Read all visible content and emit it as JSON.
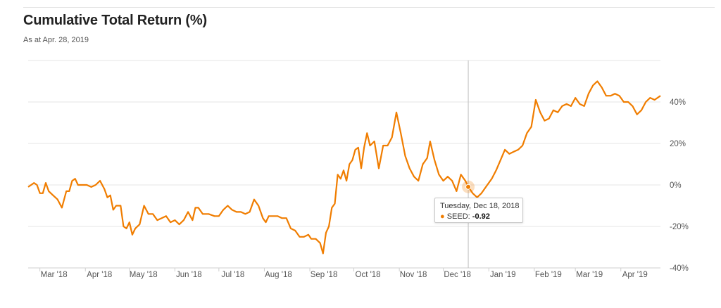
{
  "header": {
    "title": "Cumulative Total Return (%)",
    "subtitle": "As at Apr. 28, 2019"
  },
  "tooltip": {
    "date": "Tuesday, Dec 18, 2018",
    "series": "SEED:",
    "value": "-0.92"
  },
  "colors": {
    "series": "#f07d00",
    "grid": "#e6e6e6",
    "crosshair": "#bdbdbd"
  },
  "chart_data": {
    "type": "line",
    "title": "Cumulative Total Return (%)",
    "subtitle": "As at Apr. 28, 2019",
    "xlabel": "",
    "ylabel": "",
    "x_start": "2018-02-21",
    "x_end": "2019-04-28",
    "ylim": [
      -40,
      60
    ],
    "y_ticks": [
      40,
      20,
      0,
      -20,
      -40
    ],
    "y_tick_labels": [
      "40%",
      "20%",
      "0%",
      "-20%",
      "-40%"
    ],
    "x_ticks": [
      {
        "label": "Mar '18",
        "date": "2018-03-01"
      },
      {
        "label": "Apr '18",
        "date": "2018-04-01"
      },
      {
        "label": "May '18",
        "date": "2018-05-01"
      },
      {
        "label": "Jun '18",
        "date": "2018-06-01"
      },
      {
        "label": "Jul '18",
        "date": "2018-07-01"
      },
      {
        "label": "Aug '18",
        "date": "2018-08-01"
      },
      {
        "label": "Sep '18",
        "date": "2018-09-01"
      },
      {
        "label": "Oct '18",
        "date": "2018-10-01"
      },
      {
        "label": "Nov '18",
        "date": "2018-11-01"
      },
      {
        "label": "Dec '18",
        "date": "2018-12-01"
      },
      {
        "label": "Jan '19",
        "date": "2019-01-01"
      },
      {
        "label": "Feb '19",
        "date": "2019-02-01"
      },
      {
        "label": "Mar '19",
        "date": "2019-03-01"
      },
      {
        "label": "Apr '19",
        "date": "2019-04-01"
      }
    ],
    "grid": true,
    "y_axis_side": "right",
    "series": [
      {
        "name": "SEED",
        "highlight": {
          "date": "2018-12-18",
          "value": -0.92
        },
        "points": [
          [
            "2018-02-21",
            -1
          ],
          [
            "2018-02-23",
            0
          ],
          [
            "2018-02-25",
            1
          ],
          [
            "2018-02-27",
            0
          ],
          [
            "2018-03-01",
            -4
          ],
          [
            "2018-03-03",
            -4
          ],
          [
            "2018-03-05",
            1
          ],
          [
            "2018-03-07",
            -3
          ],
          [
            "2018-03-10",
            -5
          ],
          [
            "2018-03-13",
            -7
          ],
          [
            "2018-03-16",
            -11
          ],
          [
            "2018-03-19",
            -3
          ],
          [
            "2018-03-21",
            -3
          ],
          [
            "2018-03-23",
            2
          ],
          [
            "2018-03-25",
            3
          ],
          [
            "2018-03-27",
            0
          ],
          [
            "2018-03-30",
            0
          ],
          [
            "2018-04-02",
            0
          ],
          [
            "2018-04-05",
            -1
          ],
          [
            "2018-04-08",
            0
          ],
          [
            "2018-04-11",
            2
          ],
          [
            "2018-04-14",
            -2
          ],
          [
            "2018-04-16",
            -6
          ],
          [
            "2018-04-18",
            -5
          ],
          [
            "2018-04-20",
            -12
          ],
          [
            "2018-04-22",
            -10
          ],
          [
            "2018-04-25",
            -10
          ],
          [
            "2018-04-27",
            -20
          ],
          [
            "2018-04-29",
            -21
          ],
          [
            "2018-05-01",
            -18
          ],
          [
            "2018-05-03",
            -24
          ],
          [
            "2018-05-05",
            -21
          ],
          [
            "2018-05-08",
            -19
          ],
          [
            "2018-05-11",
            -10
          ],
          [
            "2018-05-14",
            -14
          ],
          [
            "2018-05-17",
            -14
          ],
          [
            "2018-05-20",
            -17
          ],
          [
            "2018-05-23",
            -16
          ],
          [
            "2018-05-26",
            -15
          ],
          [
            "2018-05-29",
            -18
          ],
          [
            "2018-06-01",
            -17
          ],
          [
            "2018-06-04",
            -19
          ],
          [
            "2018-06-07",
            -17
          ],
          [
            "2018-06-10",
            -13
          ],
          [
            "2018-06-13",
            -17
          ],
          [
            "2018-06-15",
            -11
          ],
          [
            "2018-06-17",
            -11
          ],
          [
            "2018-06-20",
            -14
          ],
          [
            "2018-06-24",
            -14
          ],
          [
            "2018-06-28",
            -15
          ],
          [
            "2018-07-01",
            -15
          ],
          [
            "2018-07-04",
            -12
          ],
          [
            "2018-07-07",
            -10
          ],
          [
            "2018-07-10",
            -12
          ],
          [
            "2018-07-13",
            -13
          ],
          [
            "2018-07-16",
            -13
          ],
          [
            "2018-07-19",
            -14
          ],
          [
            "2018-07-22",
            -13
          ],
          [
            "2018-07-25",
            -7
          ],
          [
            "2018-07-28",
            -10
          ],
          [
            "2018-07-31",
            -16
          ],
          [
            "2018-08-02",
            -18
          ],
          [
            "2018-08-04",
            -15
          ],
          [
            "2018-08-07",
            -15
          ],
          [
            "2018-08-10",
            -15
          ],
          [
            "2018-08-13",
            -16
          ],
          [
            "2018-08-16",
            -16
          ],
          [
            "2018-08-19",
            -21
          ],
          [
            "2018-08-22",
            -22
          ],
          [
            "2018-08-25",
            -25
          ],
          [
            "2018-08-28",
            -25
          ],
          [
            "2018-08-31",
            -24
          ],
          [
            "2018-09-02",
            -26
          ],
          [
            "2018-09-05",
            -26
          ],
          [
            "2018-09-08",
            -28
          ],
          [
            "2018-09-10",
            -33
          ],
          [
            "2018-09-12",
            -23
          ],
          [
            "2018-09-14",
            -20
          ],
          [
            "2018-09-16",
            -11
          ],
          [
            "2018-09-18",
            -9
          ],
          [
            "2018-09-20",
            5
          ],
          [
            "2018-09-22",
            3
          ],
          [
            "2018-09-24",
            7
          ],
          [
            "2018-09-26",
            2
          ],
          [
            "2018-09-28",
            10
          ],
          [
            "2018-09-30",
            12
          ],
          [
            "2018-10-02",
            17
          ],
          [
            "2018-10-04",
            18
          ],
          [
            "2018-10-06",
            8
          ],
          [
            "2018-10-08",
            18
          ],
          [
            "2018-10-10",
            25
          ],
          [
            "2018-10-12",
            19
          ],
          [
            "2018-10-15",
            21
          ],
          [
            "2018-10-18",
            8
          ],
          [
            "2018-10-21",
            19
          ],
          [
            "2018-10-24",
            19
          ],
          [
            "2018-10-27",
            23
          ],
          [
            "2018-10-30",
            35
          ],
          [
            "2018-11-02",
            25
          ],
          [
            "2018-11-05",
            14
          ],
          [
            "2018-11-08",
            8
          ],
          [
            "2018-11-11",
            4
          ],
          [
            "2018-11-14",
            2
          ],
          [
            "2018-11-17",
            10
          ],
          [
            "2018-11-20",
            13
          ],
          [
            "2018-11-22",
            21
          ],
          [
            "2018-11-25",
            12
          ],
          [
            "2018-11-28",
            5
          ],
          [
            "2018-12-01",
            2
          ],
          [
            "2018-12-04",
            4
          ],
          [
            "2018-12-07",
            2
          ],
          [
            "2018-12-10",
            -3
          ],
          [
            "2018-12-13",
            5
          ],
          [
            "2018-12-16",
            2
          ],
          [
            "2018-12-18",
            -0.92
          ],
          [
            "2018-12-21",
            -4
          ],
          [
            "2018-12-24",
            -6
          ],
          [
            "2018-12-27",
            -4
          ],
          [
            "2018-12-31",
            0
          ],
          [
            "2019-01-03",
            3
          ],
          [
            "2019-01-06",
            7
          ],
          [
            "2019-01-09",
            12
          ],
          [
            "2019-01-12",
            17
          ],
          [
            "2019-01-15",
            15
          ],
          [
            "2019-01-18",
            16
          ],
          [
            "2019-01-21",
            17
          ],
          [
            "2019-01-24",
            19
          ],
          [
            "2019-01-27",
            25
          ],
          [
            "2019-01-30",
            28
          ],
          [
            "2019-02-02",
            41
          ],
          [
            "2019-02-05",
            35
          ],
          [
            "2019-02-08",
            31
          ],
          [
            "2019-02-11",
            32
          ],
          [
            "2019-02-14",
            36
          ],
          [
            "2019-02-17",
            35
          ],
          [
            "2019-02-20",
            38
          ],
          [
            "2019-02-23",
            39
          ],
          [
            "2019-02-26",
            38
          ],
          [
            "2019-03-01",
            42
          ],
          [
            "2019-03-04",
            39
          ],
          [
            "2019-03-07",
            38
          ],
          [
            "2019-03-10",
            44
          ],
          [
            "2019-03-13",
            48
          ],
          [
            "2019-03-16",
            50
          ],
          [
            "2019-03-19",
            47
          ],
          [
            "2019-03-22",
            43
          ],
          [
            "2019-03-25",
            43
          ],
          [
            "2019-03-28",
            44
          ],
          [
            "2019-03-31",
            43
          ],
          [
            "2019-04-03",
            40
          ],
          [
            "2019-04-06",
            40
          ],
          [
            "2019-04-09",
            38
          ],
          [
            "2019-04-12",
            34
          ],
          [
            "2019-04-15",
            36
          ],
          [
            "2019-04-18",
            40
          ],
          [
            "2019-04-21",
            42
          ],
          [
            "2019-04-24",
            41
          ],
          [
            "2019-04-28",
            43
          ]
        ]
      }
    ]
  }
}
